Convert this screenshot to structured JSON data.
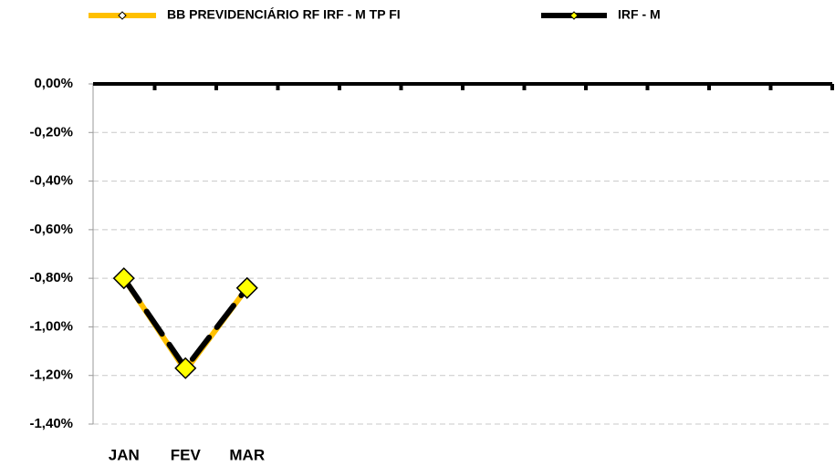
{
  "chart_data": {
    "type": "line",
    "categories": [
      "JAN",
      "FEV",
      "MAR",
      null,
      null,
      null,
      null,
      null,
      null,
      null,
      null,
      null
    ],
    "series": [
      {
        "name": "BB PREVIDENCIÁRIO RF IRF - M TP FI",
        "color": "#FFC000",
        "values": [
          -0.8,
          -1.18,
          -0.84,
          null,
          null,
          null,
          null,
          null,
          null,
          null,
          null,
          null
        ]
      },
      {
        "name": "IRF - M",
        "color": "#000000",
        "marker_color": "#FFFF00",
        "values": [
          -0.8,
          -1.17,
          -0.84,
          null,
          null,
          null,
          null,
          null,
          null,
          null,
          null,
          null
        ]
      }
    ],
    "ylim": [
      -1.4,
      0
    ],
    "yticks": [
      {
        "value": 0,
        "label": "0,00%"
      },
      {
        "value": -0.2,
        "label": "-0,20%"
      },
      {
        "value": -0.4,
        "label": "-0,40%"
      },
      {
        "value": -0.6,
        "label": "-0,60%"
      },
      {
        "value": -0.8,
        "label": "-0,80%"
      },
      {
        "value": -1.0,
        "label": "-1,00%"
      },
      {
        "value": -1.2,
        "label": "-1,20%"
      },
      {
        "value": -1.4,
        "label": "-1,40%"
      }
    ],
    "grid": true,
    "legend": "top"
  }
}
